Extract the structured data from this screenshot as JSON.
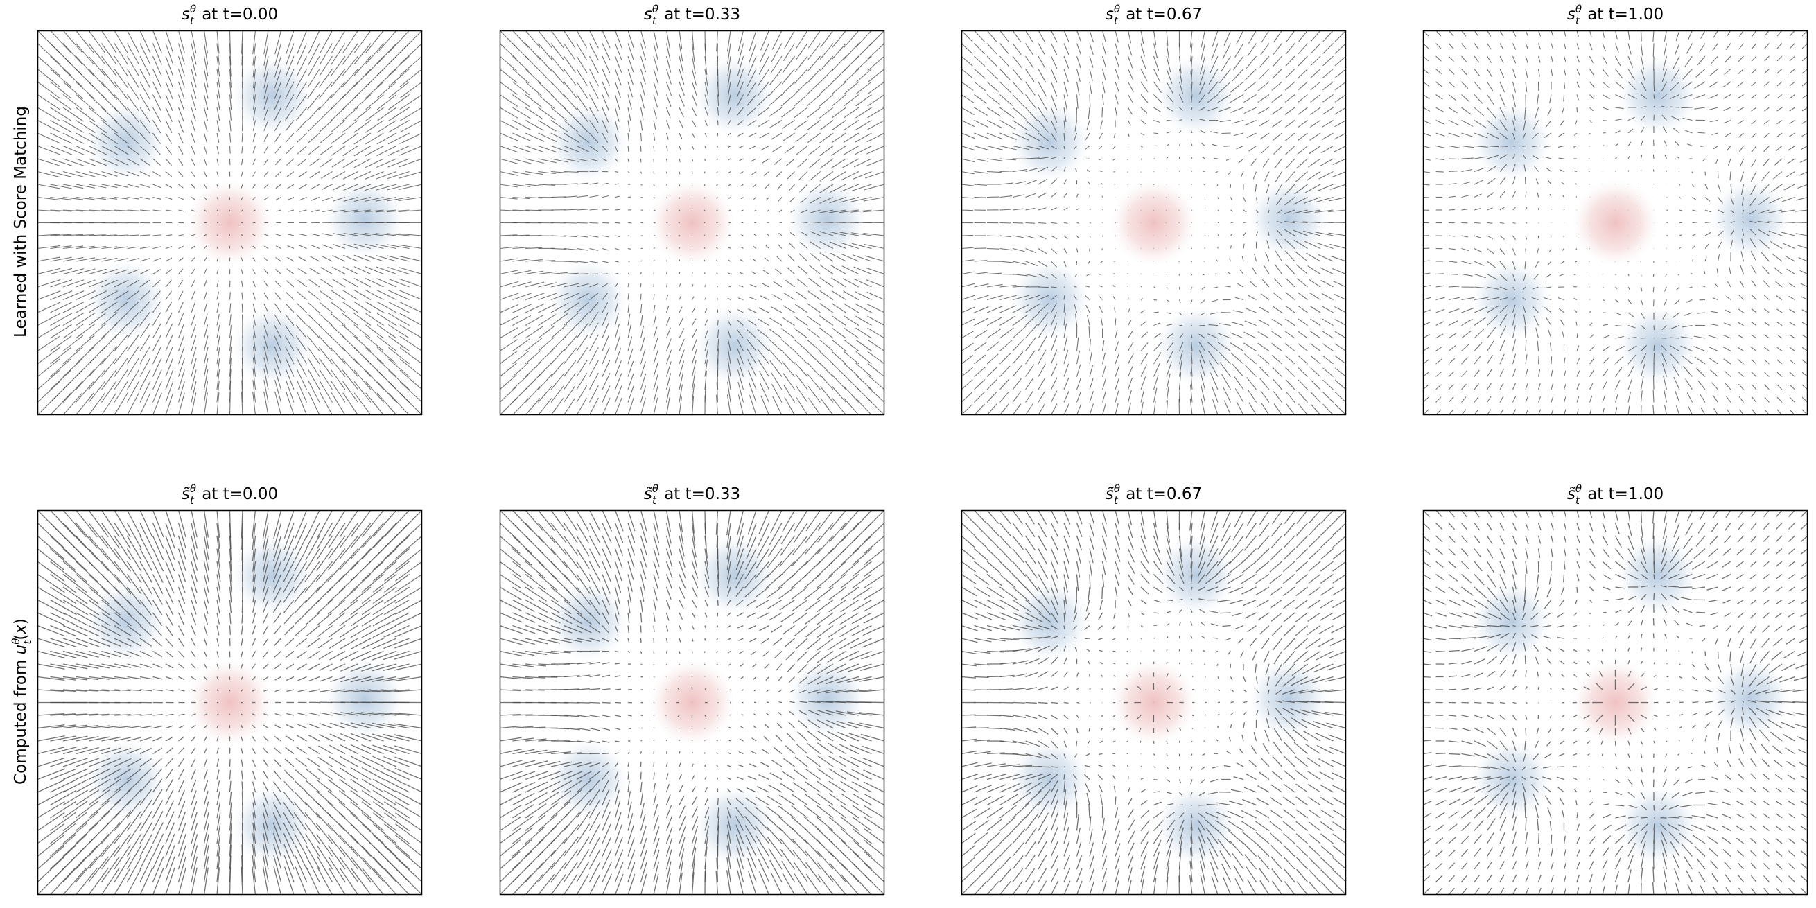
{
  "figure": {
    "row_labels": [
      "Learned with Score Matching",
      "Computed from u_t^θ(x)"
    ]
  },
  "chart_data": [
    {
      "type": "vector-field",
      "row": 0,
      "col": 0,
      "title": "s_t^θ at t=0.00",
      "t": 0.0,
      "score": "learned"
    },
    {
      "type": "vector-field",
      "row": 0,
      "col": 1,
      "title": "s_t^θ at t=0.33",
      "t": 0.33,
      "score": "learned"
    },
    {
      "type": "vector-field",
      "row": 0,
      "col": 2,
      "title": "s_t^θ at t=0.67",
      "t": 0.67,
      "score": "learned"
    },
    {
      "type": "vector-field",
      "row": 0,
      "col": 3,
      "title": "s_t^θ at t=1.00",
      "t": 1.0,
      "score": "learned"
    },
    {
      "type": "vector-field",
      "row": 1,
      "col": 0,
      "title": "s̃_t^θ at t=0.00",
      "t": 0.0,
      "score": "computed"
    },
    {
      "type": "vector-field",
      "row": 1,
      "col": 1,
      "title": "s̃_t^θ at t=0.33",
      "t": 0.33,
      "score": "computed"
    },
    {
      "type": "vector-field",
      "row": 1,
      "col": 2,
      "title": "s̃_t^θ at t=0.67",
      "t": 0.67,
      "score": "computed"
    },
    {
      "type": "vector-field",
      "row": 1,
      "col": 3,
      "title": "s̃_t^θ at t=1.00",
      "t": 1.0,
      "score": "computed"
    }
  ],
  "colors": {
    "source_density": "#e8a0a0",
    "target_density": "#7fa3c8",
    "arrows": "#444444",
    "frame": "#000000"
  }
}
